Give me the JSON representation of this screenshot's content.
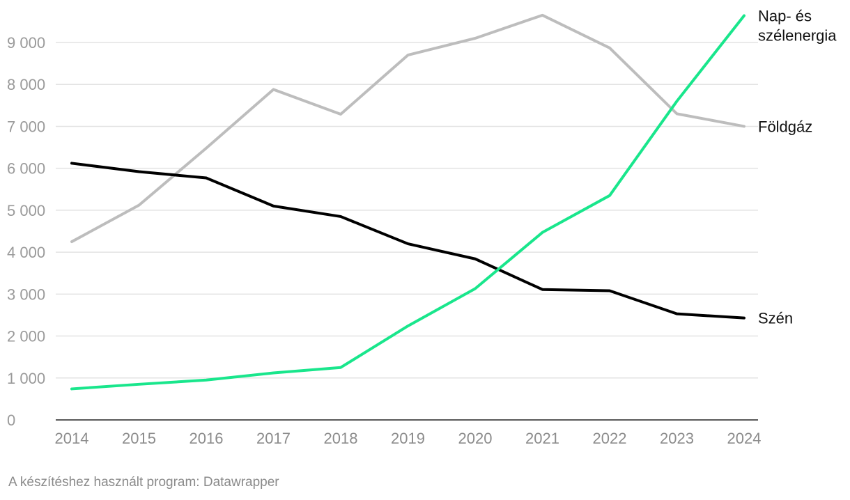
{
  "chart_data": {
    "type": "line",
    "x": [
      "2014",
      "2015",
      "2016",
      "2017",
      "2018",
      "2019",
      "2020",
      "2021",
      "2022",
      "2023",
      "2024"
    ],
    "ylim": [
      0,
      9000
    ],
    "y_ticks": [
      "0",
      "1 000",
      "2 000",
      "3 000",
      "4 000",
      "5 000",
      "6 000",
      "7 000",
      "8 000",
      "9 000"
    ],
    "y_tick_values": [
      0,
      1000,
      2000,
      3000,
      4000,
      5000,
      6000,
      7000,
      8000,
      9000
    ],
    "grid": true,
    "legend": "direct labels at line ends",
    "series": [
      {
        "name": "Földgáz",
        "label_lines": [
          "Földgáz"
        ],
        "color": "#bdbdbd",
        "values": [
          4250,
          5120,
          6480,
          7880,
          7290,
          8700,
          9100,
          9650,
          8870,
          7300,
          7000
        ]
      },
      {
        "name": "Szén",
        "label_lines": [
          "Szén"
        ],
        "color": "#000000",
        "values": [
          6120,
          5920,
          5770,
          5100,
          4850,
          4200,
          3840,
          3110,
          3080,
          2530,
          2430
        ]
      },
      {
        "name": "Nap- és szélenergia",
        "label_lines": [
          "Nap- és",
          "szélenergia"
        ],
        "color": "#19e68c",
        "values": [
          740,
          850,
          950,
          1120,
          1250,
          2240,
          3130,
          4470,
          5350,
          7600,
          9640
        ]
      }
    ]
  },
  "footer": {
    "credit": "A készítéshez használt program: Datawrapper"
  }
}
